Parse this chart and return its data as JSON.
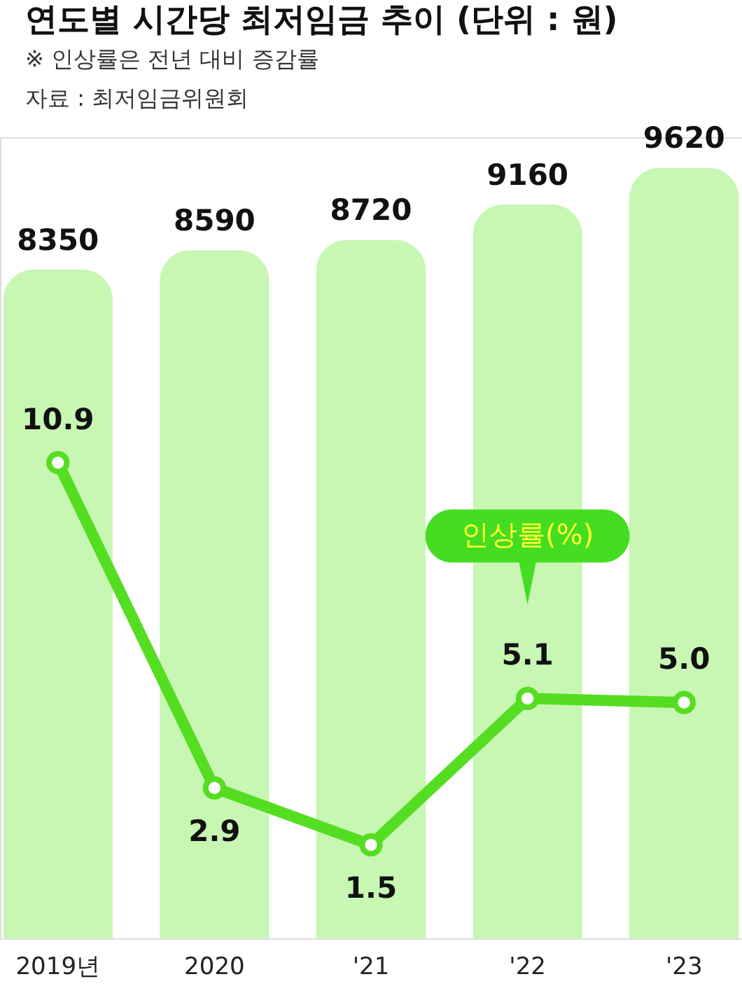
{
  "chart_data": {
    "type": "bar",
    "title": "연도별 시간당 최저임금 추이 (단위 : 원)",
    "subtitle": "※ 인상률은 전년 대비 증감률",
    "annotations": [
      "자료 : 최저임금위원회"
    ],
    "categories": [
      "2019년",
      "2020",
      "'21",
      "'22",
      "'23"
    ],
    "series": [
      {
        "color": "#c8f7b4",
        "values": [
          8350,
          8590,
          8720,
          9160,
          9620
        ],
        "value_labels": [
          "8350",
          "8590",
          "8720",
          "9160",
          "9620"
        ]
      },
      {
        "name": "인상률(%)",
        "type": "line",
        "axis": "y2",
        "color": "#55dd22",
        "values": [
          10.9,
          2.9,
          1.5,
          5.1,
          5.0
        ],
        "value_labels": [
          "10.9",
          "2.9",
          "1.5",
          "5.1",
          "5.0"
        ]
      }
    ],
    "ylim": [
      0,
      10000
    ],
    "y2lim": [
      -0.8,
      18.9
    ],
    "tick_labels": "x",
    "legend": false,
    "marker": "circle",
    "line_style": "solid"
  }
}
